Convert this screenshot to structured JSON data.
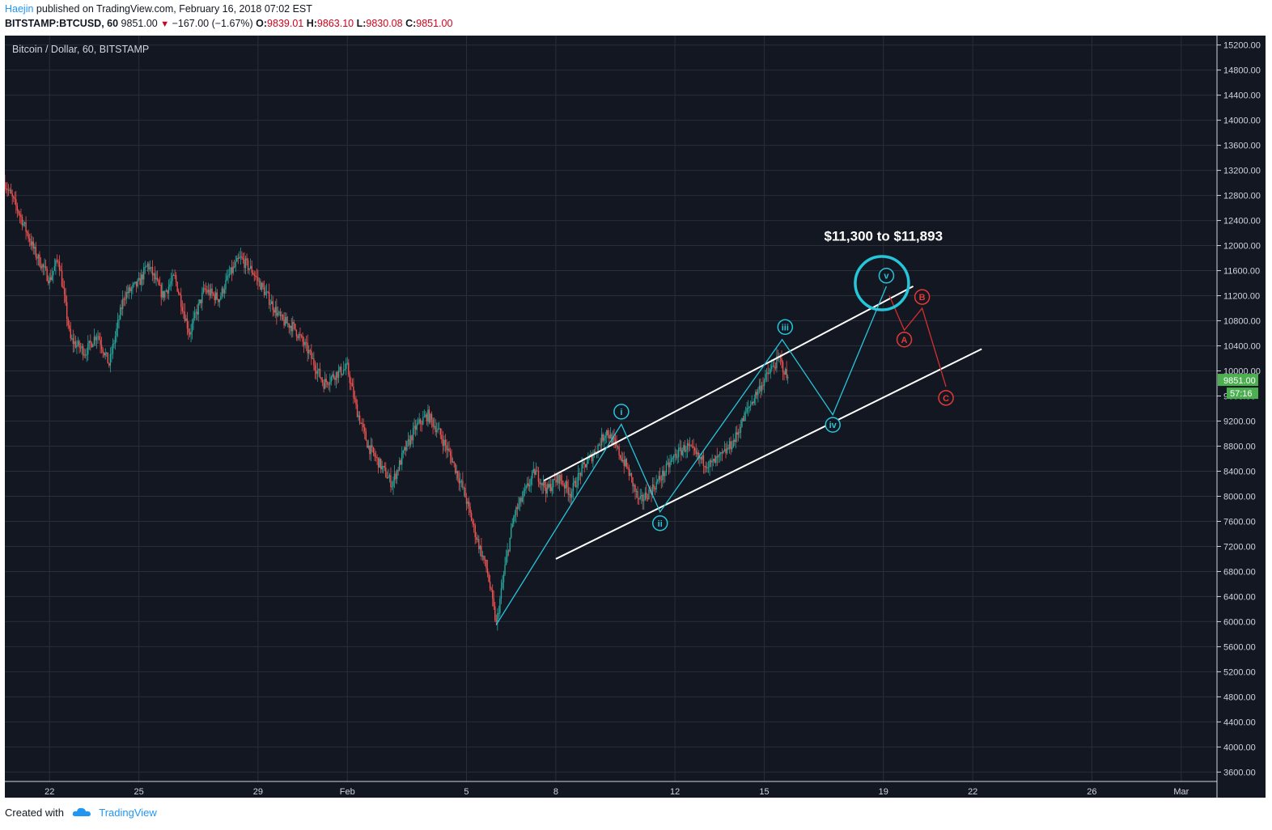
{
  "header": {
    "author": "Haejin",
    "published": "published on TradingView.com, February 16, 2018 07:02 EST",
    "symbol": "BITSTAMP:BTCUSD, 60",
    "last": "9851.00",
    "change": "−167.00 (−1.67%)",
    "o_label": "O:",
    "o_value": "9839.01",
    "h_label": "H:",
    "h_value": "9863.10",
    "l_label": "L:",
    "l_value": "9830.08",
    "c_label": "C:",
    "c_value": "9851.00"
  },
  "footer": {
    "created_with": "Created with",
    "brand": "TradingView"
  },
  "colors": {
    "background": "#131722",
    "grid": "#2a2e39",
    "up": "#26a69a",
    "down": "#ef5350",
    "wave": "#26c6da",
    "corrective": "#d32f2f",
    "channel": "#ffffff",
    "price_tag": "#4caf50"
  },
  "chart_data": {
    "type": "candlestick",
    "title": "Bitcoin / Dollar, 60, BITSTAMP",
    "x_ticks": [
      "22",
      "25",
      "29",
      "Feb",
      "5",
      "8",
      "12",
      "15",
      "19",
      "22",
      "26",
      "Mar"
    ],
    "x_tick_days": [
      22,
      25,
      29,
      32,
      36,
      39,
      43,
      46,
      50,
      53,
      57,
      60
    ],
    "x_range_days": [
      20.5,
      61.2
    ],
    "y_ticks": [
      15200,
      14800,
      14400,
      14000,
      13600,
      13200,
      12800,
      12400,
      12000,
      11600,
      11200,
      10800,
      10400,
      10000,
      9600,
      9200,
      8800,
      8400,
      8000,
      7600,
      7200,
      6800,
      6400,
      6000,
      5600,
      5200,
      4800,
      4400,
      4000,
      3600
    ],
    "y_range": [
      3450,
      15350
    ],
    "last_price": "9851.00",
    "countdown": "57:16",
    "price_path": [
      [
        20.5,
        13000
      ],
      [
        21.0,
        12500
      ],
      [
        21.5,
        11900
      ],
      [
        22.0,
        11450
      ],
      [
        22.3,
        11800
      ],
      [
        22.7,
        10500
      ],
      [
        23.2,
        10300
      ],
      [
        23.6,
        10600
      ],
      [
        24.0,
        10100
      ],
      [
        24.5,
        11200
      ],
      [
        25.0,
        11400
      ],
      [
        25.3,
        11700
      ],
      [
        25.8,
        11200
      ],
      [
        26.2,
        11500
      ],
      [
        26.7,
        10600
      ],
      [
        27.2,
        11300
      ],
      [
        27.7,
        11150
      ],
      [
        28.0,
        11500
      ],
      [
        28.4,
        11800
      ],
      [
        28.8,
        11600
      ],
      [
        29.3,
        11200
      ],
      [
        29.8,
        10800
      ],
      [
        30.2,
        10700
      ],
      [
        30.7,
        10300
      ],
      [
        31.2,
        9800
      ],
      [
        31.6,
        9950
      ],
      [
        32.0,
        10050
      ],
      [
        32.3,
        9400
      ],
      [
        32.7,
        8800
      ],
      [
        33.1,
        8500
      ],
      [
        33.5,
        8200
      ],
      [
        33.9,
        8700
      ],
      [
        34.3,
        9100
      ],
      [
        34.7,
        9300
      ],
      [
        35.1,
        9000
      ],
      [
        35.5,
        8600
      ],
      [
        35.9,
        8100
      ],
      [
        36.3,
        7400
      ],
      [
        36.7,
        6800
      ],
      [
        37.0,
        5950
      ],
      [
        37.3,
        6900
      ],
      [
        37.6,
        7700
      ],
      [
        38.0,
        8100
      ],
      [
        38.3,
        8400
      ],
      [
        38.7,
        8100
      ],
      [
        39.1,
        8300
      ],
      [
        39.5,
        8050
      ],
      [
        39.9,
        8450
      ],
      [
        40.3,
        8700
      ],
      [
        40.7,
        9050
      ],
      [
        41.0,
        8800
      ],
      [
        41.4,
        8450
      ],
      [
        41.8,
        7900
      ],
      [
        42.2,
        8100
      ],
      [
        42.6,
        8350
      ],
      [
        43.0,
        8650
      ],
      [
        43.4,
        8800
      ],
      [
        43.8,
        8600
      ],
      [
        44.2,
        8500
      ],
      [
        44.6,
        8650
      ],
      [
        45.0,
        8900
      ],
      [
        45.4,
        9350
      ],
      [
        45.8,
        9700
      ],
      [
        46.2,
        10000
      ],
      [
        46.5,
        10200
      ],
      [
        46.8,
        9850
      ]
    ],
    "channel_upper": [
      [
        38.6,
        8250
      ],
      [
        51.0,
        11350
      ]
    ],
    "channel_lower": [
      [
        39.0,
        7000
      ],
      [
        53.3,
        10350
      ]
    ],
    "impulse_path": [
      [
        37.0,
        5950
      ],
      [
        41.2,
        9150
      ],
      [
        42.5,
        7750
      ],
      [
        46.6,
        10500
      ],
      [
        48.3,
        9300
      ],
      [
        50.1,
        11350
      ]
    ],
    "corrective_path": [
      [
        50.2,
        11200
      ],
      [
        50.7,
        10650
      ],
      [
        51.3,
        11000
      ],
      [
        52.1,
        9750
      ]
    ],
    "wave_labels": [
      {
        "text": "i",
        "day": 41.2,
        "price": 9350
      },
      {
        "text": "ii",
        "day": 42.5,
        "price": 7570
      },
      {
        "text": "iii",
        "day": 46.7,
        "price": 10700
      },
      {
        "text": "iv",
        "day": 48.3,
        "price": 9140
      },
      {
        "text": "v",
        "day": 50.1,
        "price": 11520
      }
    ],
    "corrective_labels": [
      {
        "text": "A",
        "day": 50.7,
        "price": 10500
      },
      {
        "text": "B",
        "day": 51.3,
        "price": 11180
      },
      {
        "text": "C",
        "day": 52.1,
        "price": 9570
      }
    ],
    "target_circle": {
      "day": 49.95,
      "price": 11400
    },
    "annotation": {
      "text": "$11,300 to $11,893",
      "day": 50.0,
      "price": 12080
    }
  }
}
